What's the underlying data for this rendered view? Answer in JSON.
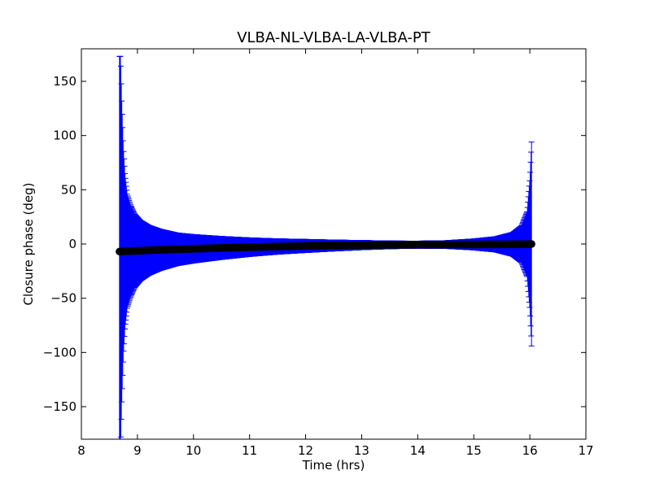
{
  "chart_data": {
    "type": "scatter",
    "title": "VLBA-NL-VLBA-LA-VLBA-PT",
    "xlabel": "Time (hrs)",
    "ylabel": "Closure phase (deg)",
    "xlim": [
      8,
      17
    ],
    "ylim": [
      -180,
      180
    ],
    "xticks": [
      8,
      9,
      10,
      11,
      12,
      13,
      14,
      15,
      16,
      17
    ],
    "yticks": [
      -150,
      -100,
      -50,
      0,
      50,
      100,
      150
    ],
    "xtick_labels": [
      "8",
      "9",
      "10",
      "11",
      "12",
      "13",
      "14",
      "15",
      "16",
      "17"
    ],
    "ytick_labels": [
      "−150",
      "−100",
      "−50",
      "0",
      "50",
      "100",
      "150"
    ],
    "grid": false,
    "series": [
      {
        "color": "#000000",
        "error_color": "#0000ff",
        "x": [
          8.68,
          8.7,
          8.72,
          8.75,
          8.78,
          8.82,
          8.88,
          8.95,
          9.05,
          9.2,
          9.4,
          9.7,
          10.0,
          10.5,
          11.0,
          11.5,
          12.0,
          12.5,
          13.0,
          13.5,
          14.0,
          14.5,
          15.0,
          15.4,
          15.7,
          15.85,
          15.95,
          16.0,
          16.03
        ],
        "y": [
          -7.0,
          -7.0,
          -6.9,
          -6.8,
          -6.7,
          -6.6,
          -6.5,
          -6.3,
          -6.1,
          -5.8,
          -5.4,
          -4.9,
          -4.4,
          -3.6,
          -2.9,
          -2.3,
          -1.8,
          -1.4,
          -1.0,
          -0.8,
          -0.6,
          -0.5,
          -0.4,
          -0.3,
          -0.3,
          -0.2,
          -0.2,
          -0.1,
          0.0
        ],
        "yerr": [
          180,
          180,
          140,
          95,
          70,
          52,
          42,
          34,
          28,
          23,
          19,
          15,
          13,
          10.5,
          8.5,
          7,
          6,
          5,
          4.2,
          3.5,
          3.2,
          3.5,
          5,
          7,
          11,
          17,
          30,
          60,
          94
        ]
      }
    ]
  }
}
